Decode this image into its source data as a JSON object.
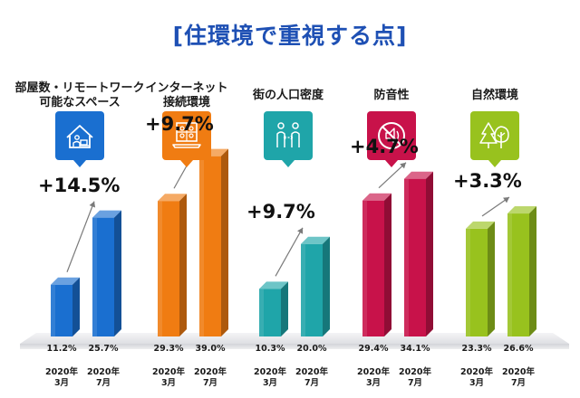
{
  "chart_data": {
    "type": "bar",
    "title": "[住環境で重視する点]",
    "x_labels": [
      {
        "year": "2020年",
        "month": "3月"
      },
      {
        "year": "2020年",
        "month": "7月"
      }
    ],
    "ylim": [
      0,
      45
    ],
    "categories": [
      {
        "name": "部屋数・リモートワーク\n可能なスペース",
        "icon": "house-remote-work-icon",
        "color": "#1a6fd0",
        "values": [
          11.2,
          25.7
        ],
        "value_labels": [
          "11.2%",
          "25.7%"
        ],
        "change": "+14.5%"
      },
      {
        "name": "インターネット\n接続環境",
        "icon": "laptop-network-icon",
        "color": "#f07c12",
        "values": [
          29.3,
          39.0
        ],
        "value_labels": [
          "29.3%",
          "39.0%"
        ],
        "change": "+9.7%"
      },
      {
        "name": "街の人口密度",
        "icon": "social-distance-icon",
        "color": "#1fa5a9",
        "values": [
          10.3,
          20.0
        ],
        "value_labels": [
          "10.3%",
          "20.0%"
        ],
        "change": "+9.7%"
      },
      {
        "name": "防音性",
        "icon": "no-sound-icon",
        "color": "#c8124a",
        "values": [
          29.4,
          34.1
        ],
        "value_labels": [
          "29.4%",
          "34.1%"
        ],
        "change": "+4.7%"
      },
      {
        "name": "自然環境",
        "icon": "trees-icon",
        "color": "#98c21e",
        "values": [
          23.3,
          26.6
        ],
        "value_labels": [
          "23.3%",
          "26.6%"
        ],
        "change": "+3.3%"
      }
    ]
  }
}
